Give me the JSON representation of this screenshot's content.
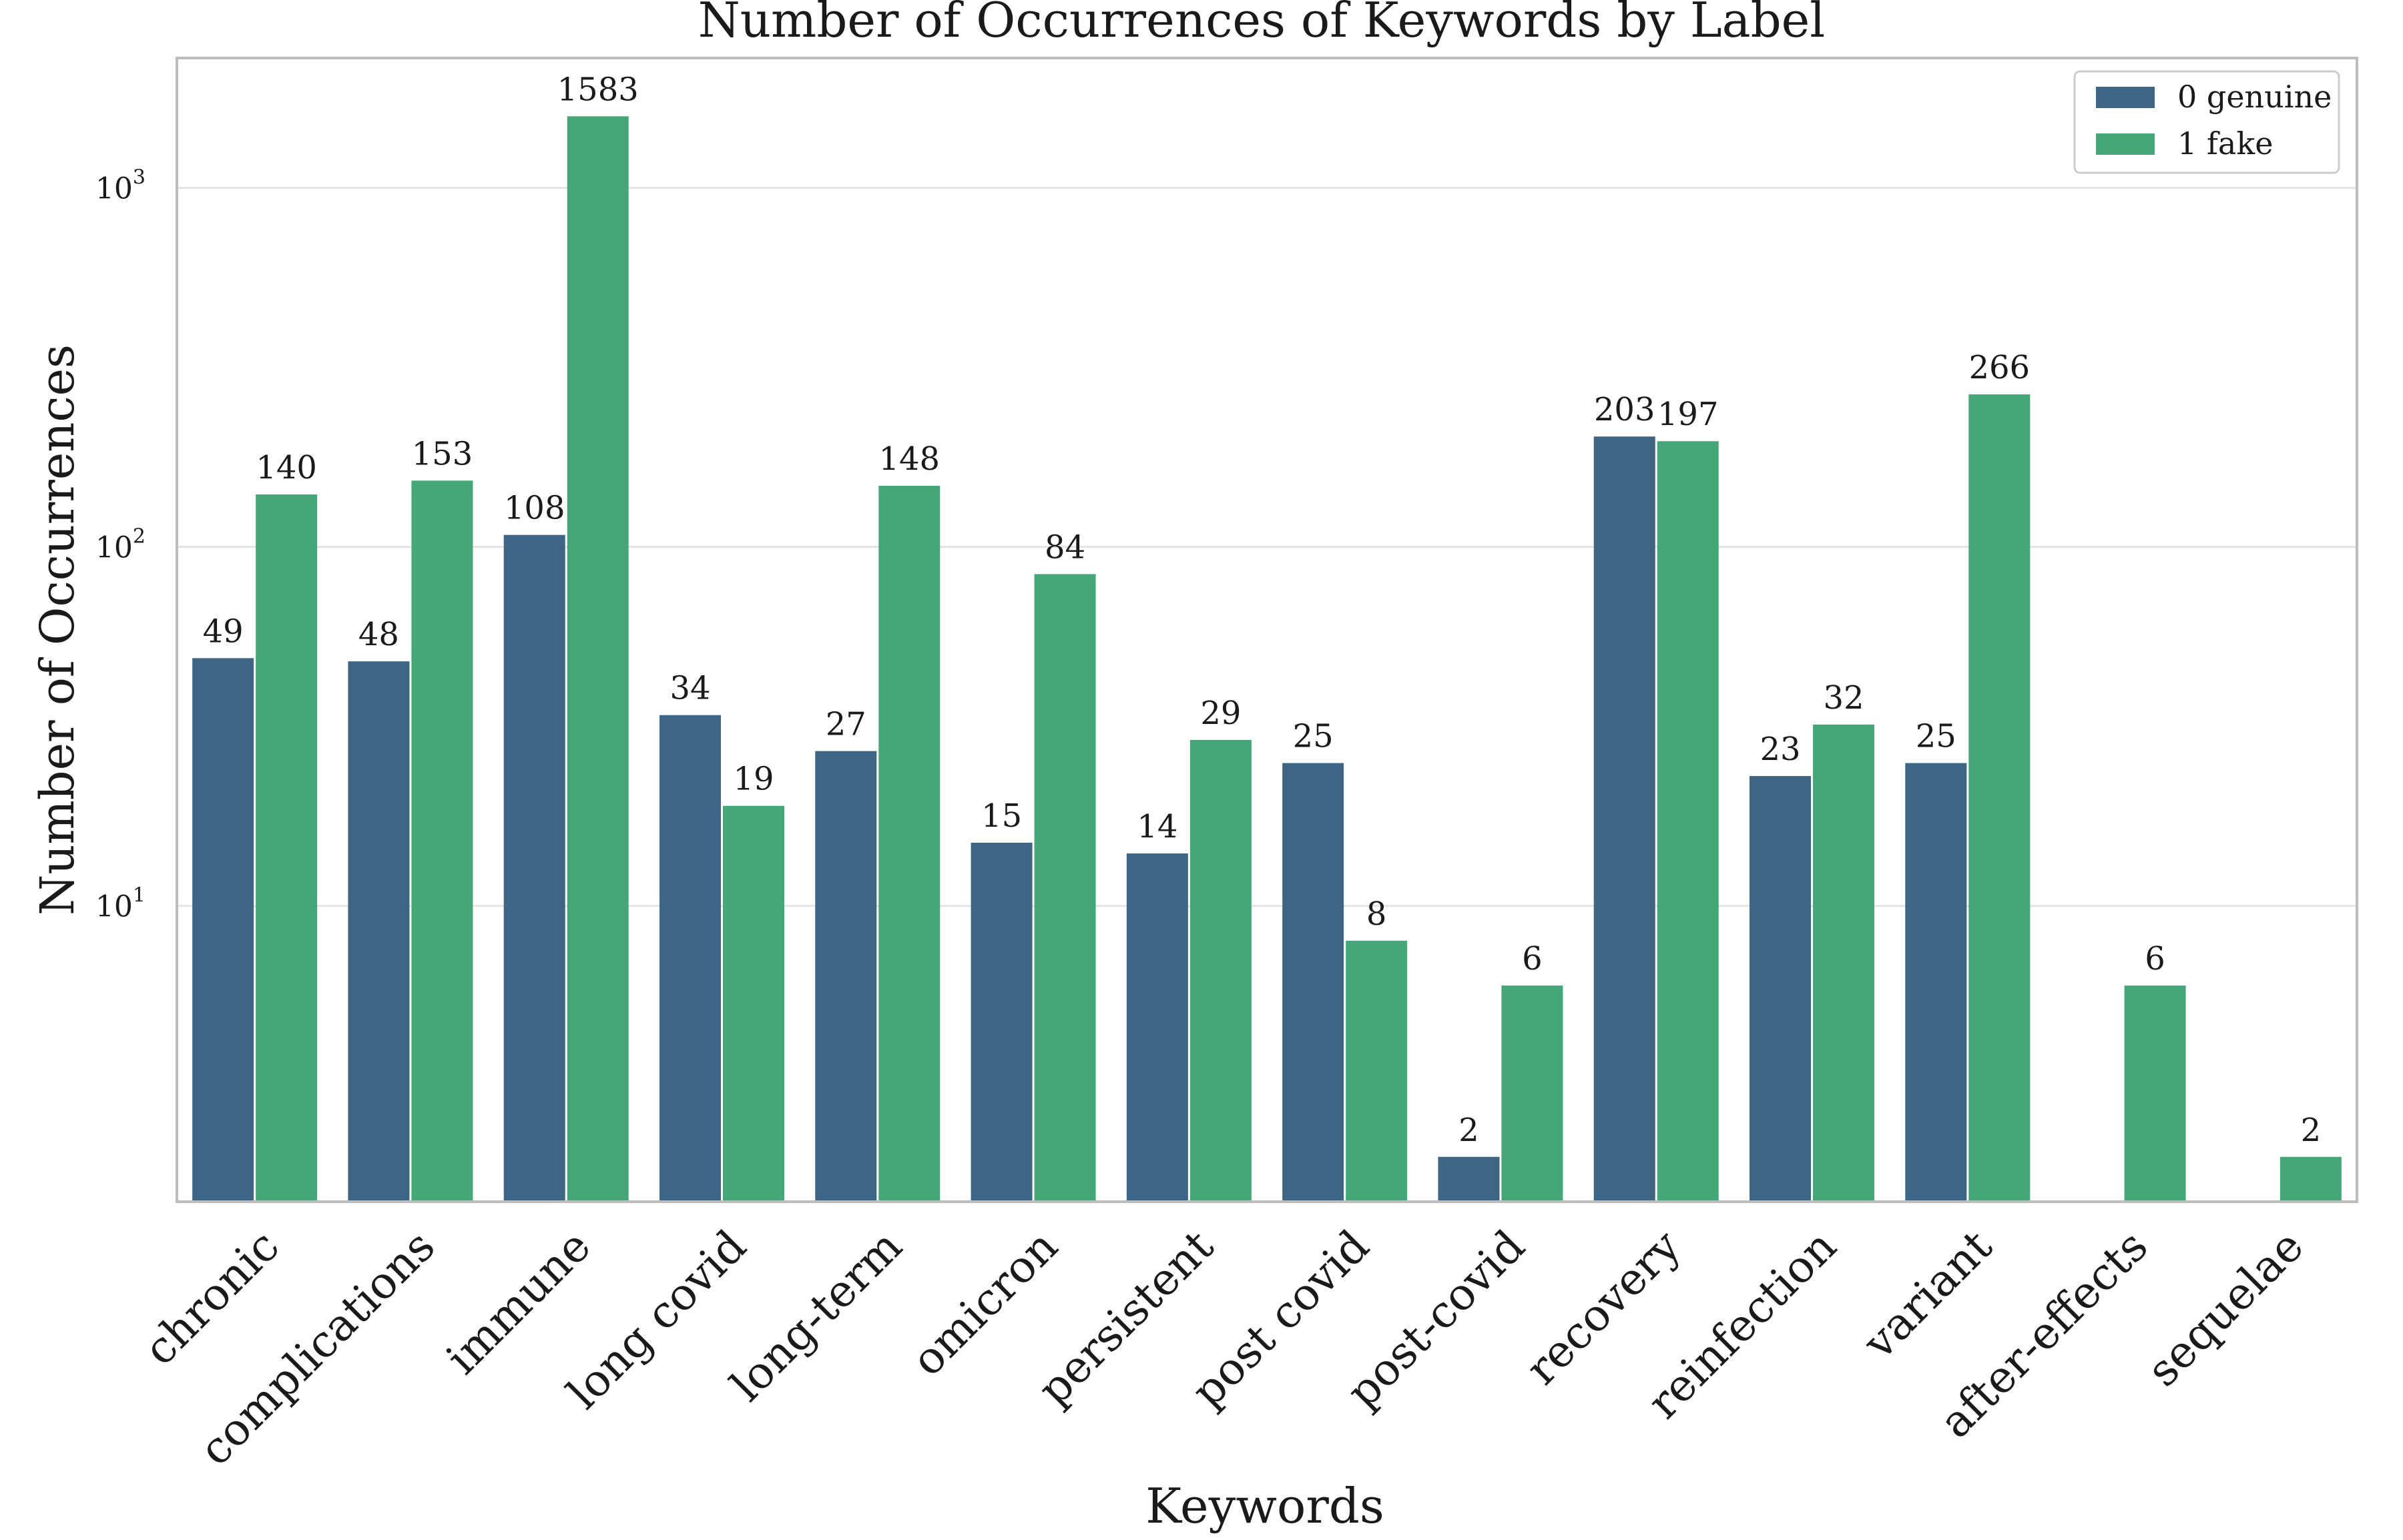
{
  "chart_data": {
    "type": "bar",
    "title": "Number of Occurrences of Keywords by Label",
    "xlabel": "Keywords",
    "ylabel": "Number of Occurrences",
    "yscale": "log",
    "ylim": [
      1.5,
      2300
    ],
    "yticks": [
      {
        "base": "10",
        "exp": "1",
        "value": 10
      },
      {
        "base": "10",
        "exp": "2",
        "value": 100
      },
      {
        "base": "10",
        "exp": "3",
        "value": 1000
      }
    ],
    "grid": true,
    "legend_position": "top-right",
    "categories": [
      "chronic",
      "complications",
      "immune",
      "long covid",
      "long-term",
      "omicron",
      "persistent",
      "post covid",
      "post-covid",
      "recovery",
      "reinfection",
      "variant",
      "after-effects",
      "sequelae"
    ],
    "series": [
      {
        "name": "0 genuine",
        "color": "#3e6584",
        "values": [
          49,
          48,
          108,
          34,
          27,
          15,
          14,
          25,
          2,
          203,
          23,
          25,
          null,
          null
        ],
        "labels": [
          "49",
          "48",
          "108",
          "34",
          "27",
          "15",
          "14",
          "25",
          "2",
          "203",
          "23",
          "25",
          "",
          ""
        ]
      },
      {
        "name": "1 fake",
        "color": "#45a777",
        "values": [
          140,
          153,
          1583,
          19,
          148,
          84,
          29,
          8,
          6,
          197,
          32,
          266,
          6,
          2
        ],
        "labels": [
          "140",
          "153",
          "1583",
          "19",
          "148",
          "84",
          "29",
          "8",
          "6",
          "197",
          "32",
          "266",
          "6",
          "2"
        ]
      }
    ]
  }
}
